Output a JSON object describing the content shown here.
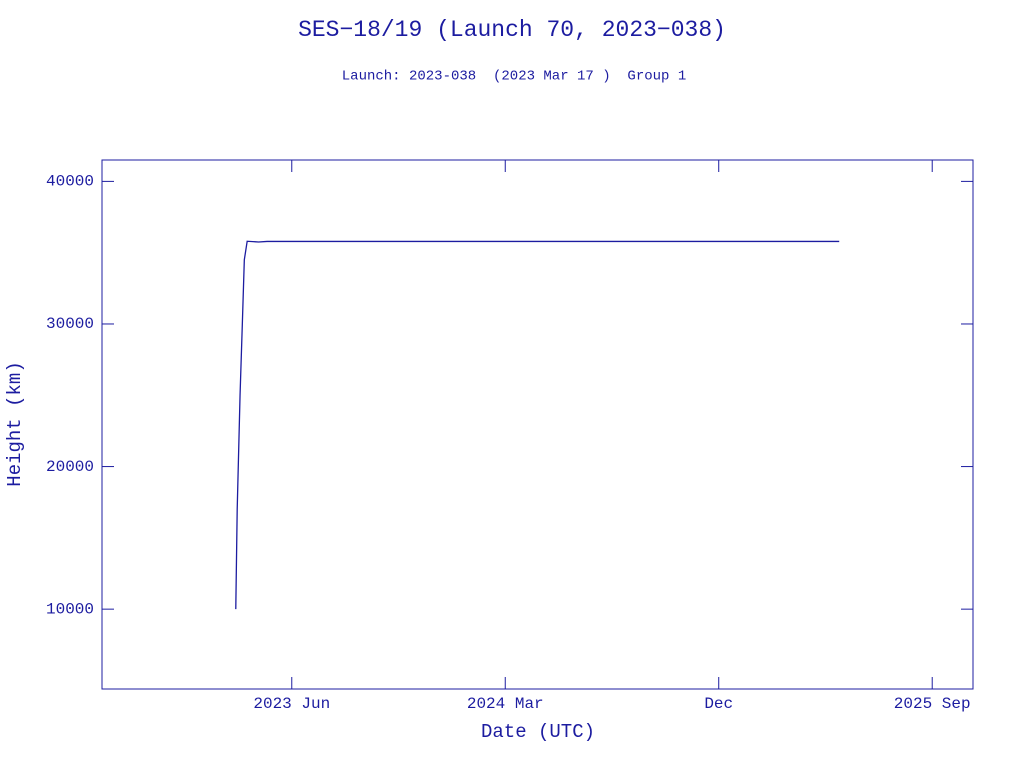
{
  "chart_data": {
    "type": "line",
    "title": "SES−18/19 (Launch 70, 2023−038)",
    "subtitle": "Launch: 2023-038  (2023 Mar 17 )  Group 1",
    "xlabel": "Date (UTC)",
    "ylabel": "Height (km)",
    "x": [
      2023.22,
      2023.225,
      2023.235,
      2023.243,
      2023.25,
      2023.26,
      2023.3,
      2023.33,
      2025.34
    ],
    "series": [
      {
        "color": "#1c1ca0",
        "values": [
          10000,
          17000,
          25000,
          30000,
          34500,
          35800,
          35750,
          35790,
          35790
        ]
      }
    ],
    "xlim": [
      2022.75,
      2025.81
    ],
    "ylim": [
      4400,
      41500
    ],
    "xticks": [
      {
        "value": 2023.4167,
        "label": "2023 Jun"
      },
      {
        "value": 2024.1667,
        "label": "2024 Mar"
      },
      {
        "value": 2024.9167,
        "label": "Dec"
      },
      {
        "value": 2025.6667,
        "label": "2025 Sep"
      }
    ],
    "yticks": [
      10000,
      20000,
      30000,
      40000
    ]
  }
}
